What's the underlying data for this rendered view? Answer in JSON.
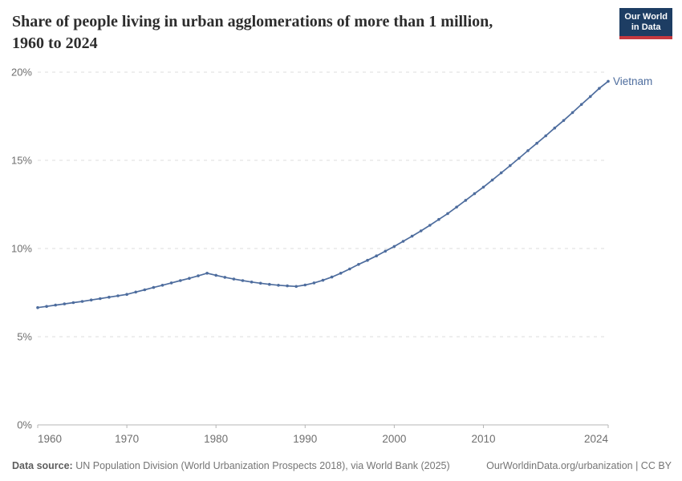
{
  "header": {
    "title_line1": "Share of people living in urban agglomerations of more than 1 million,",
    "title_line2": "1960 to 2024",
    "logo_line1": "Our World",
    "logo_line2": "in Data"
  },
  "chart_data": {
    "type": "line",
    "title": "Share of people living in urban agglomerations of more than 1 million, 1960 to 2024",
    "xlabel": "",
    "ylabel": "",
    "unit": "%",
    "xlim": [
      1960,
      2024
    ],
    "ylim": [
      0,
      20
    ],
    "grid": "horizontal-dashed",
    "legend_position": "end-of-line-label",
    "x_tick_values": [
      1960,
      1970,
      1980,
      1990,
      2000,
      2010,
      2024
    ],
    "x_tick_labels": [
      "1960",
      "1970",
      "1980",
      "1990",
      "2000",
      "2010",
      "2024"
    ],
    "y_tick_values": [
      0,
      5,
      10,
      15,
      20
    ],
    "y_tick_labels": [
      "0%",
      "5%",
      "10%",
      "15%",
      "20%"
    ],
    "x": [
      1960,
      1961,
      1962,
      1963,
      1964,
      1965,
      1966,
      1967,
      1968,
      1969,
      1970,
      1971,
      1972,
      1973,
      1974,
      1975,
      1976,
      1977,
      1978,
      1979,
      1980,
      1981,
      1982,
      1983,
      1984,
      1985,
      1986,
      1987,
      1988,
      1989,
      1990,
      1991,
      1992,
      1993,
      1994,
      1995,
      1996,
      1997,
      1998,
      1999,
      2000,
      2001,
      2002,
      2003,
      2004,
      2005,
      2006,
      2007,
      2008,
      2009,
      2010,
      2011,
      2012,
      2013,
      2014,
      2015,
      2016,
      2017,
      2018,
      2019,
      2020,
      2021,
      2022,
      2023,
      2024
    ],
    "series": [
      {
        "name": "Vietnam",
        "color": "#4e6d9e",
        "values": [
          6.65,
          6.72,
          6.79,
          6.86,
          6.93,
          7.0,
          7.08,
          7.16,
          7.24,
          7.32,
          7.4,
          7.53,
          7.66,
          7.79,
          7.92,
          8.05,
          8.18,
          8.31,
          8.45,
          8.6,
          8.48,
          8.37,
          8.27,
          8.18,
          8.1,
          8.03,
          7.97,
          7.92,
          7.88,
          7.85,
          7.93,
          8.05,
          8.2,
          8.38,
          8.6,
          8.84,
          9.1,
          9.33,
          9.58,
          9.85,
          10.12,
          10.41,
          10.7,
          11.0,
          11.32,
          11.65,
          11.98,
          12.35,
          12.73,
          13.11,
          13.48,
          13.88,
          14.29,
          14.7,
          15.12,
          15.55,
          15.97,
          16.39,
          16.83,
          17.26,
          17.71,
          18.17,
          18.62,
          19.08,
          19.48
        ]
      }
    ]
  },
  "footer": {
    "source_label": "Data source:",
    "source_text": "UN Population Division (World Urbanization Prospects 2018), via World Bank (2025)",
    "right_text": "OurWorldinData.org/urbanization | CC BY"
  },
  "colors": {
    "line": "#4e6d9e",
    "logo_bg": "#1d3d63",
    "logo_stripe": "#c5393f",
    "grid": "#dcdcdc",
    "axis": "#b5b5b5",
    "tick_text": "#6f6f6f",
    "title_text": "#2d2d2d",
    "footer_text": "#757575"
  }
}
